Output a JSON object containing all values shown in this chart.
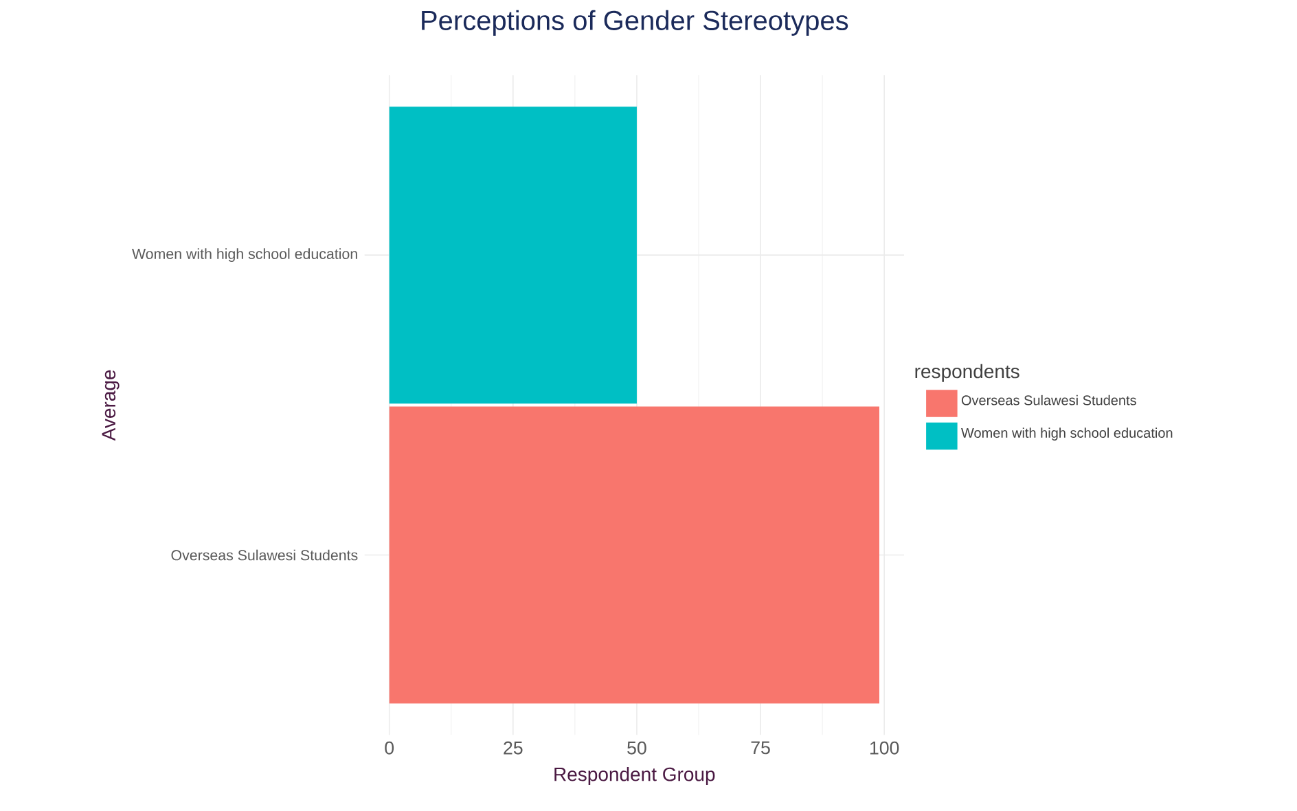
{
  "chart_data": {
    "type": "bar",
    "orientation": "horizontal",
    "title": "Perceptions of Gender Stereotypes",
    "xlabel": "Respondent Group",
    "ylabel": "Average",
    "legend_title": "respondents",
    "categories": [
      "Women with high school education",
      "Overseas Sulawesi Students"
    ],
    "series": [
      {
        "name": "Overseas Sulawesi Students",
        "color": "#f8766d",
        "values": [
          null,
          99
        ]
      },
      {
        "name": "Women with high school education",
        "color": "#00bfc4",
        "values": [
          50,
          null
        ]
      }
    ],
    "xlim": [
      -5,
      104
    ],
    "xticks": [
      0,
      25,
      50,
      75,
      100
    ],
    "grid": true,
    "legend": "right"
  }
}
